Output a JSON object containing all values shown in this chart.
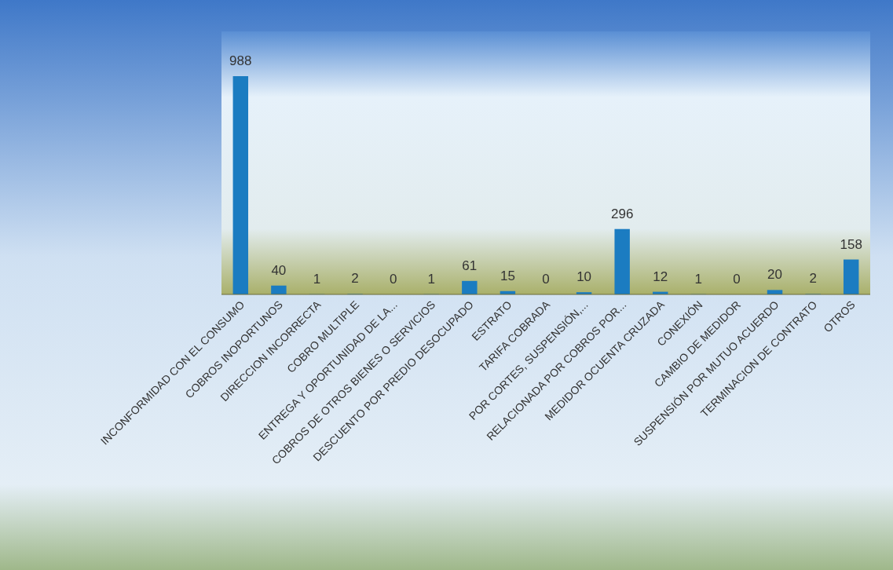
{
  "chart_data": {
    "type": "bar",
    "categories": [
      "INCONFORMIDAD CON EL CONSUMO",
      "COBROS INOPORTUNOS",
      "DIRECCION INCORRECTA",
      "COBRO MULTIPLE",
      "ENTREGA Y OPORTUNIDAD DE LA...",
      "COBROS DE OTROS BIENES O SERVICIOS",
      "DESCUENTO POR PREDIO DESOCUPADO",
      "ESTRATO",
      "TARIFA COBRADA",
      "POR CORTES, SUSPENSIÓN,...",
      "RELACIONADA POR COBROS POR...",
      "MEDIDOR OCUENTA CRUZADA",
      "CONEXIÓN",
      "CAMBIO DE MEDIDOR",
      "SUSPENSIÓN POR MUTUO ACUERDO",
      "TERMINACION DE CONTRATO",
      "OTROS"
    ],
    "values": [
      988,
      40,
      1,
      2,
      0,
      1,
      61,
      15,
      0,
      10,
      296,
      12,
      1,
      0,
      20,
      2,
      158
    ],
    "color": "#1b7cc1",
    "data_labels": true
  }
}
